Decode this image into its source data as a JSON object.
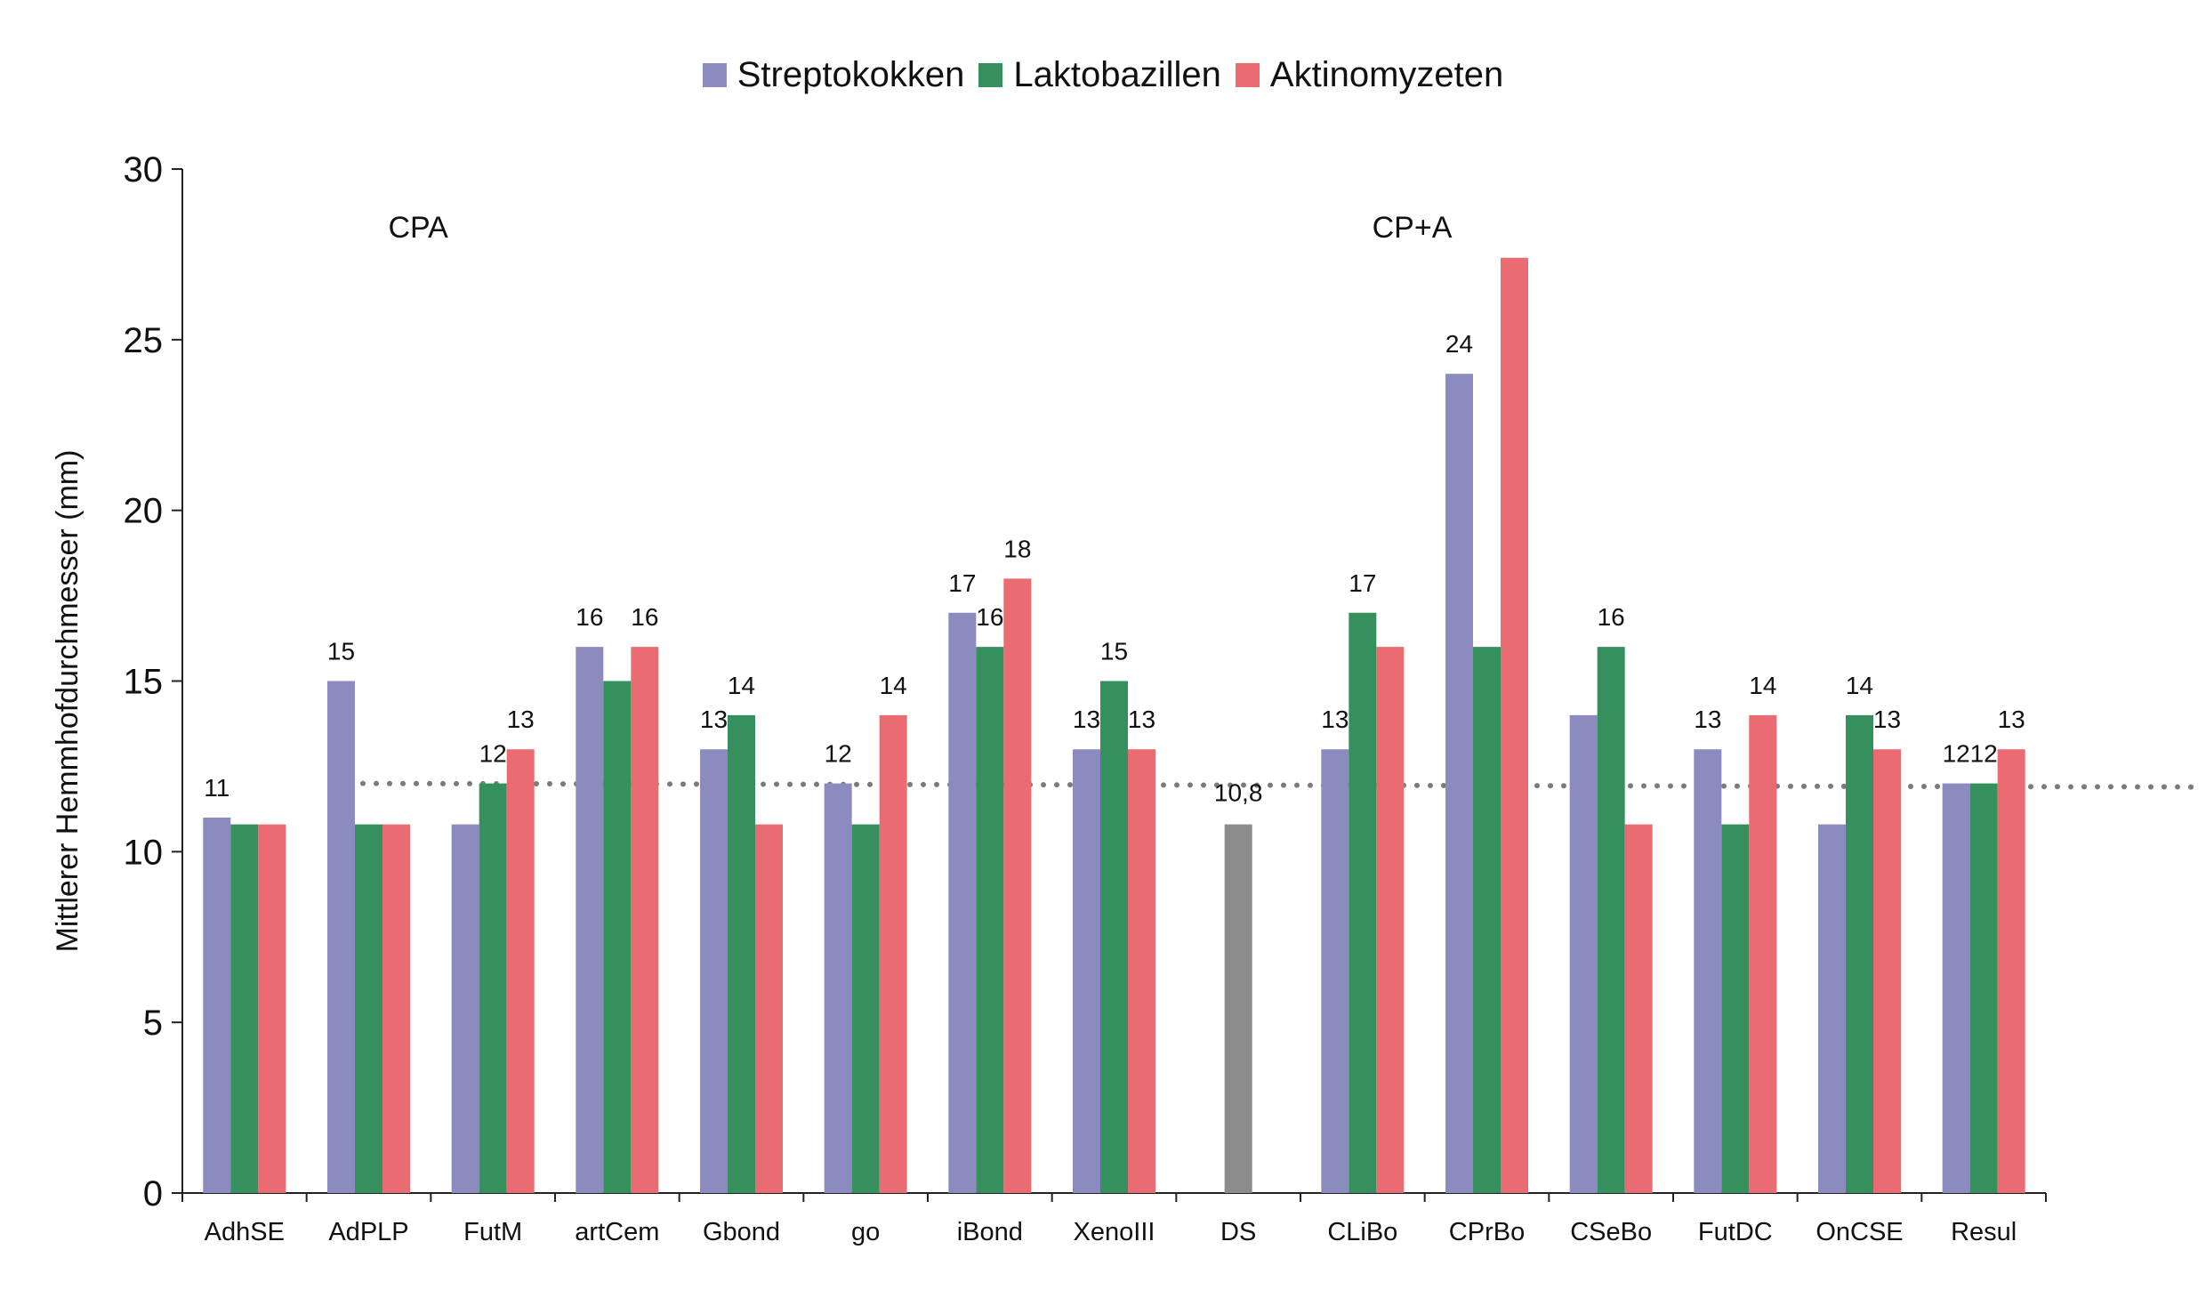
{
  "chart_data": {
    "type": "bar",
    "ylabel": "Mittlerer Hemmhofdurchmesser (mm)",
    "xlabel": "",
    "ylim": [
      0,
      30
    ],
    "yticks": [
      0,
      5,
      10,
      15,
      20,
      25,
      30
    ],
    "grid": false,
    "legend_position": "top-center",
    "categories": [
      "AdhSE",
      "AdPLP",
      "FutM",
      "artCem",
      "Gbond",
      "go",
      "iBond",
      "XenoIII",
      "DS",
      "CLiBo",
      "CPrBo",
      "CSeBo",
      "FutDC",
      "OnCSE",
      "Resul"
    ],
    "series": [
      {
        "name": "Streptokokken",
        "color": "#8b8bbf",
        "values": [
          11,
          15,
          10.8,
          16,
          13,
          12,
          17,
          13,
          null,
          13,
          24,
          14,
          13,
          10.8,
          12
        ],
        "labels": [
          "11",
          "15",
          "",
          "16",
          "13",
          "12",
          "17",
          "13",
          "",
          "13",
          "24",
          "",
          "13",
          "",
          "12"
        ]
      },
      {
        "name": "Laktobazillen",
        "color": "#35905e",
        "values": [
          10.8,
          10.8,
          12,
          15,
          14,
          10.8,
          16,
          15,
          null,
          17,
          16,
          16,
          10.8,
          14,
          12
        ],
        "labels": [
          "",
          "",
          "12",
          "",
          "14",
          "",
          "16",
          "15",
          "",
          "17",
          "",
          "16",
          "",
          "14",
          "12"
        ]
      },
      {
        "name": "Aktinomyzeten",
        "color": "#ea6b72",
        "values": [
          10.8,
          10.8,
          13,
          16,
          10.8,
          14,
          18,
          13,
          null,
          16,
          27.4,
          10.8,
          14,
          13,
          13
        ],
        "labels": [
          "",
          "",
          "13",
          "16",
          "",
          "14",
          "18",
          "13",
          "",
          "",
          "",
          "",
          "14",
          "13",
          "13"
        ]
      }
    ],
    "control": {
      "category": "DS",
      "value": 10.8,
      "label": "10,8",
      "color": "#8c8c8c"
    },
    "reference_line": {
      "value": 12,
      "style": "dotted",
      "color": "#7a7a7a"
    },
    "group_annotations": [
      {
        "text": "CPA",
        "category": "FutM"
      },
      {
        "text": "CP+A",
        "category": "CPrBo"
      }
    ]
  }
}
